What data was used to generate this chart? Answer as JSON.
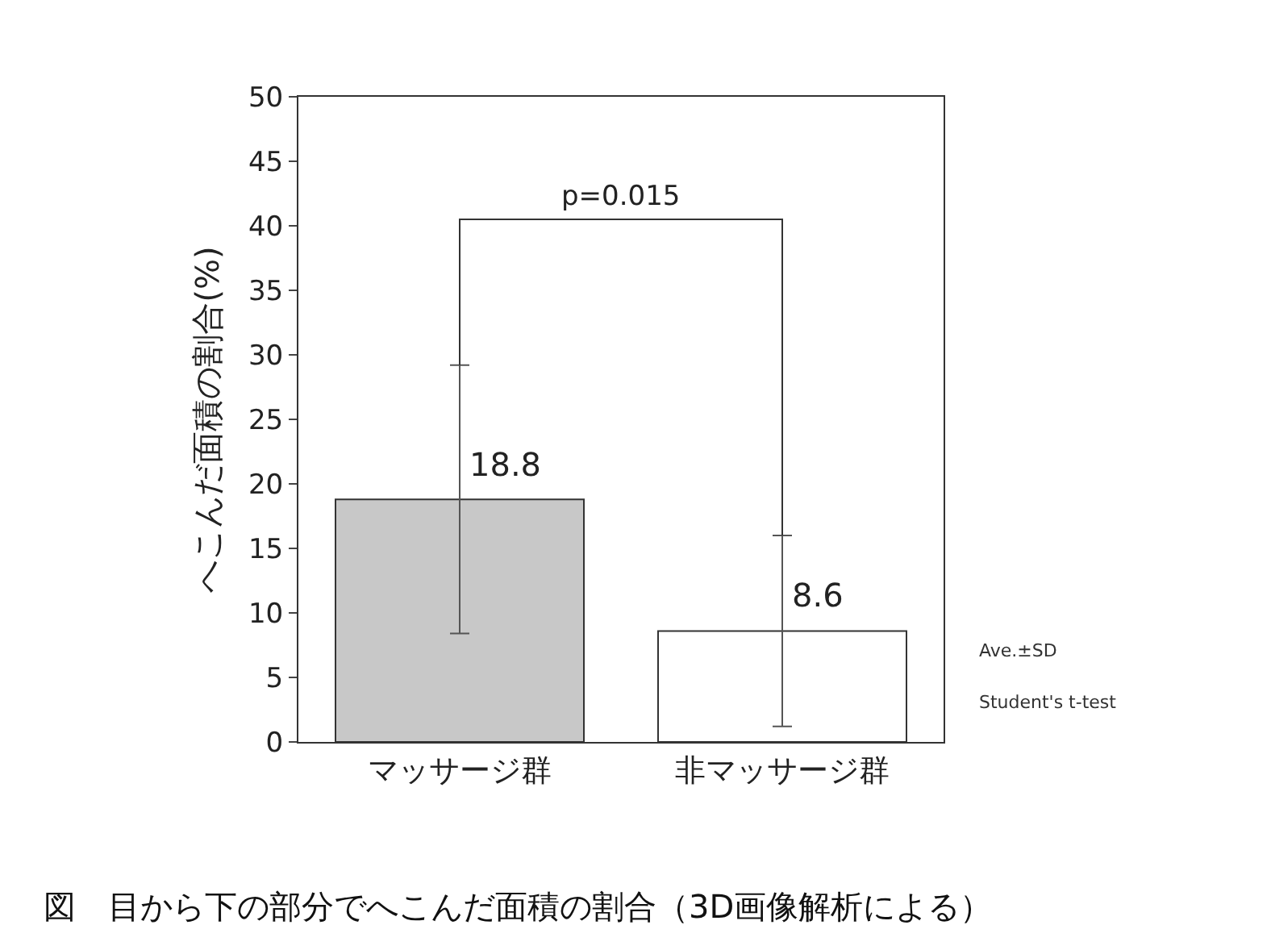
{
  "chart_data": {
    "type": "bar",
    "ylabel": "へこんだ面積の割合(%)",
    "categories": [
      "マッサージ群",
      "非マッサージ群"
    ],
    "values": [
      18.8,
      8.6
    ],
    "colors": [
      "#c8c8c8",
      "#ffffff"
    ],
    "errors": [
      10.4,
      7.4
    ],
    "ylim": [
      0,
      50
    ],
    "yticks": [
      0,
      5,
      10,
      15,
      20,
      25,
      30,
      35,
      40,
      45,
      50
    ],
    "grid": false,
    "legend": false,
    "data_labels": true,
    "annotations": [
      "p=0.015",
      "Ave.±SD",
      "Student's t-test",
      "図　目から下の部分でへこんだ面積の割合（3D画像解析による）"
    ]
  }
}
